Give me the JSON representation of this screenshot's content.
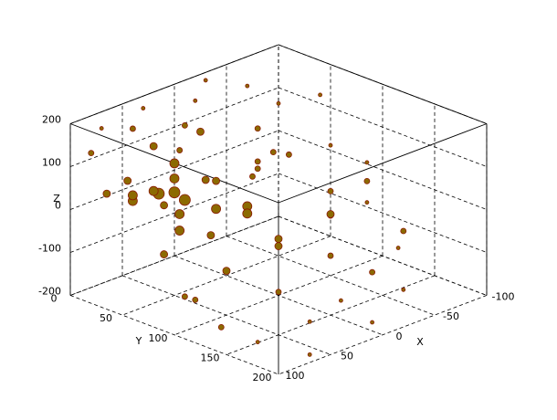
{
  "chart_data": {
    "type": "scatter3d",
    "x_label": "X",
    "y_label": "Y",
    "z_label": "Z",
    "xlim": [
      -100,
      100
    ],
    "ylim": [
      0,
      200
    ],
    "zlim": [
      -200,
      200
    ],
    "xticks": [
      -100,
      -50,
      0,
      50,
      100
    ],
    "yticks": [
      0,
      50,
      100,
      150,
      200
    ],
    "zticks": [
      -200,
      -100,
      0,
      100,
      200
    ],
    "grid": true,
    "color": "#8c6a00",
    "edgecolor": "#8b1a00",
    "x": [
      80,
      70,
      90,
      60,
      85,
      75,
      95,
      65,
      50,
      40,
      30,
      20,
      10,
      0,
      -20,
      -40,
      -60,
      -80,
      -90,
      -70,
      -50,
      -30,
      -10,
      10,
      30,
      50,
      70,
      90,
      100,
      80,
      60,
      40,
      20,
      0,
      -20,
      -60,
      -80,
      -100,
      -95,
      -85,
      -60,
      -40,
      -20,
      0,
      20,
      40,
      60,
      80,
      95,
      100,
      90,
      70,
      55,
      45,
      35,
      25,
      15,
      5,
      -5,
      -35,
      -75,
      85,
      65
    ],
    "y": [
      60,
      55,
      50,
      70,
      40,
      80,
      30,
      65,
      50,
      80,
      60,
      90,
      50,
      70,
      60,
      40,
      20,
      30,
      60,
      80,
      100,
      120,
      140,
      110,
      130,
      150,
      120,
      100,
      20,
      10,
      20,
      10,
      30,
      20,
      10,
      10,
      20,
      40,
      90,
      130,
      160,
      180,
      170,
      190,
      180,
      170,
      190,
      160,
      140,
      120,
      80,
      30,
      45,
      25,
      35,
      100,
      40,
      10,
      90,
      150,
      110,
      90,
      100
    ],
    "z": [
      80,
      60,
      70,
      50,
      90,
      40,
      60,
      100,
      40,
      20,
      60,
      0,
      30,
      -20,
      40,
      20,
      60,
      -10,
      30,
      -40,
      -60,
      -20,
      -80,
      -50,
      -30,
      -100,
      -60,
      -120,
      150,
      180,
      170,
      190,
      150,
      180,
      200,
      150,
      100,
      120,
      -80,
      -140,
      -50,
      -150,
      -100,
      -180,
      -120,
      -160,
      -200,
      -180,
      -150,
      -100,
      -40,
      20,
      10,
      120,
      80,
      100,
      140,
      60,
      120,
      80,
      50,
      20,
      0
    ],
    "sizes": [
      5,
      6,
      5,
      6,
      4,
      5,
      4,
      5,
      6,
      5,
      4,
      5,
      4,
      5,
      3,
      3,
      3,
      3,
      2,
      3,
      3,
      4,
      3,
      4,
      4,
      3,
      4,
      3,
      3,
      2,
      3,
      2,
      3,
      2,
      2,
      2,
      2,
      2,
      2,
      2,
      3,
      2,
      3,
      2,
      2,
      2,
      2,
      2,
      3,
      3,
      4,
      5,
      4,
      4,
      5,
      3,
      4,
      3,
      3,
      3,
      2,
      5,
      4
    ]
  }
}
